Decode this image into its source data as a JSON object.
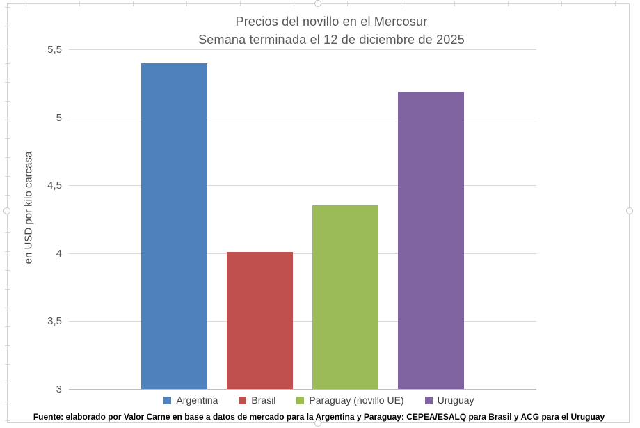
{
  "chart": {
    "title_lines": [
      "Precios del novillo en el Mercosur",
      "Semana terminada el 12 de diciembre de 2025"
    ],
    "y_axis_title": "en USD por kilo carcasa",
    "footer": "Fuente: elaborado por Valor Carne en base a datos de mercado para la Argentina y Paraguay: CEPEA/ESALQ para Brasil y ACG para el Uruguay"
  },
  "chart_data": {
    "type": "bar",
    "title": "Precios del novillo en el Mercosur",
    "subtitle": "Semana terminada el 12 de diciembre de 2025",
    "categories": [
      "Argentina",
      "Brasil",
      "Paraguay (novillo UE)",
      "Uruguay"
    ],
    "values": [
      5.4,
      4.01,
      4.35,
      5.19
    ],
    "colors": [
      "#4F81BD",
      "#C0504D",
      "#9BBB59",
      "#8064A2"
    ],
    "xlabel": "",
    "ylabel": "en USD por kilo carcasa",
    "ylim": [
      3,
      5.5
    ],
    "ytick_step": 0.5,
    "ytick_labels": [
      "3",
      "3,5",
      "4",
      "4,5",
      "5",
      "5,5"
    ],
    "grid": true,
    "legend_position": "bottom",
    "source": "Fuente: elaborado por Valor Carne en base a datos de mercado para la Argentina y Paraguay: CEPEA/ESALQ para Brasil y ACG para el Uruguay"
  }
}
